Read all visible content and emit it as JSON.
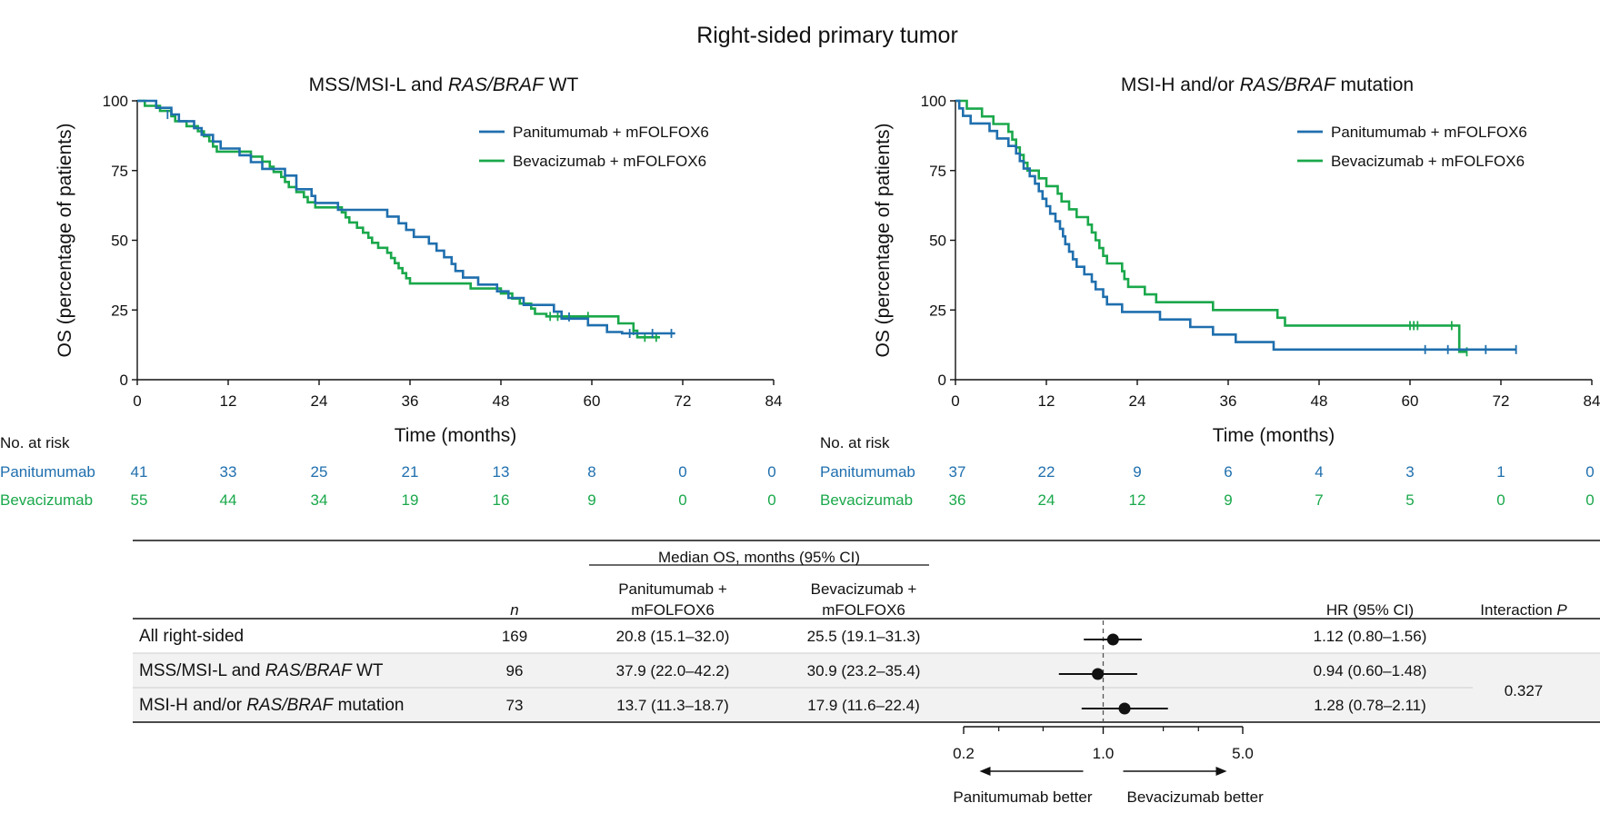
{
  "figure_title": "Right-sided primary tumor",
  "colors": {
    "panitumumab": "#1f6fae",
    "bevacizumab": "#1aa84b",
    "text": "#111111",
    "band": "#f2f2f2"
  },
  "chart_data": [
    {
      "type": "line",
      "title_plain": "MSS/MSI-L and ",
      "title_italic": "RAS/BRAF",
      "title_tail": " WT",
      "xlabel": "Time (months)",
      "ylabel": "OS (percentage of patients)",
      "xlim": [
        0,
        84
      ],
      "ylim": [
        0,
        100
      ],
      "xticks": [
        0,
        12,
        24,
        36,
        48,
        60,
        72,
        84
      ],
      "yticks": [
        0,
        25,
        50,
        75,
        100
      ],
      "legend_position": "top-right",
      "series": [
        {
          "name": "Panitumumab + mFOLFOX6",
          "color_key": "panitumumab",
          "steps": [
            [
              0,
              100
            ],
            [
              2.5,
              97.5
            ],
            [
              4.5,
              95.1
            ],
            [
              5.5,
              92.7
            ],
            [
              7.5,
              90.2
            ],
            [
              8.5,
              87.8
            ],
            [
              10,
              85.4
            ],
            [
              11,
              82.9
            ],
            [
              13.5,
              80.5
            ],
            [
              15,
              78
            ],
            [
              16.5,
              75.6
            ],
            [
              19.5,
              73.2
            ],
            [
              21,
              68.3
            ],
            [
              23,
              65.9
            ],
            [
              23.5,
              63.4
            ],
            [
              26.5,
              60.9
            ],
            [
              33,
              58.5
            ],
            [
              34.5,
              56.1
            ],
            [
              35.5,
              53.7
            ],
            [
              36.5,
              51.2
            ],
            [
              38.5,
              48.8
            ],
            [
              39.5,
              46.3
            ],
            [
              40.5,
              43.9
            ],
            [
              41.5,
              41.5
            ],
            [
              42,
              39
            ],
            [
              43,
              36.6
            ],
            [
              45,
              34.1
            ],
            [
              47.5,
              31.7
            ],
            [
              49,
              29.3
            ],
            [
              51,
              26.8
            ],
            [
              55,
              24.4
            ],
            [
              56,
              21.9
            ],
            [
              59.5,
              19.5
            ],
            [
              62,
              17.1
            ],
            [
              64,
              16.6
            ],
            [
              71,
              16.6
            ]
          ],
          "censors": [
            [
              4,
              95.1
            ],
            [
              57,
              22.5
            ],
            [
              65,
              16.6
            ],
            [
              68,
              16.6
            ],
            [
              70.5,
              16.6
            ]
          ]
        },
        {
          "name": "Bevacizumab + mFOLFOX6",
          "color_key": "bevacizumab",
          "steps": [
            [
              0,
              100
            ],
            [
              1,
              98.2
            ],
            [
              3,
              96.4
            ],
            [
              4.5,
              94.5
            ],
            [
              5,
              92.7
            ],
            [
              6.5,
              90.9
            ],
            [
              8,
              89.1
            ],
            [
              8.8,
              87.3
            ],
            [
              9.5,
              85.5
            ],
            [
              10,
              83.6
            ],
            [
              10.5,
              81.8
            ],
            [
              15,
              80
            ],
            [
              16.5,
              78.2
            ],
            [
              17.5,
              76.4
            ],
            [
              18,
              74.5
            ],
            [
              19,
              72.7
            ],
            [
              19.5,
              70.9
            ],
            [
              20,
              69.1
            ],
            [
              21,
              67.3
            ],
            [
              22,
              65.5
            ],
            [
              22.5,
              63.6
            ],
            [
              23.5,
              61.8
            ],
            [
              27,
              60
            ],
            [
              27.5,
              58.2
            ],
            [
              28,
              56.4
            ],
            [
              29,
              54.5
            ],
            [
              29.8,
              52.7
            ],
            [
              30.5,
              50.9
            ],
            [
              31,
              49.1
            ],
            [
              31.8,
              47.3
            ],
            [
              33,
              45.5
            ],
            [
              33.5,
              43.6
            ],
            [
              34,
              41.8
            ],
            [
              34.5,
              40
            ],
            [
              35,
              38.2
            ],
            [
              35.5,
              36.4
            ],
            [
              36,
              34.5
            ],
            [
              44,
              32.7
            ],
            [
              48,
              30.9
            ],
            [
              49.5,
              29.1
            ],
            [
              50.5,
              27.3
            ],
            [
              52,
              25.5
            ],
            [
              52.5,
              23.6
            ],
            [
              54,
              22.7
            ],
            [
              60.5,
              22.7
            ],
            [
              63.5,
              20.2
            ],
            [
              65.5,
              17.6
            ],
            [
              66,
              15.2
            ],
            [
              69,
              15.2
            ]
          ],
          "censors": [
            [
              54.5,
              22.7
            ],
            [
              55.5,
              22.7
            ],
            [
              59.5,
              22.7
            ],
            [
              65.5,
              17.6
            ],
            [
              67,
              15.2
            ],
            [
              68.5,
              15.2
            ]
          ]
        }
      ],
      "risk_table": {
        "header": "No. at risk",
        "rows": [
          {
            "label": "Panitumumab",
            "color_key": "panitumumab",
            "values": [
              "41",
              "33",
              "25",
              "21",
              "13",
              "8",
              "0",
              "0"
            ]
          },
          {
            "label": "Bevacizumab",
            "color_key": "bevacizumab",
            "values": [
              "55",
              "44",
              "34",
              "19",
              "16",
              "9",
              "0",
              "0"
            ]
          }
        ]
      }
    },
    {
      "type": "line",
      "title_plain": "MSI-H and/or ",
      "title_italic": "RAS/BRAF",
      "title_tail": " mutation",
      "xlabel": "Time (months)",
      "ylabel": "OS (percentage of patients)",
      "xlim": [
        0,
        84
      ],
      "ylim": [
        0,
        100
      ],
      "xticks": [
        0,
        12,
        24,
        36,
        48,
        60,
        72,
        84
      ],
      "yticks": [
        0,
        25,
        50,
        75,
        100
      ],
      "legend_position": "top-right",
      "series": [
        {
          "name": "Panitumumab + mFOLFOX6",
          "color_key": "panitumumab",
          "steps": [
            [
              0,
              100
            ],
            [
              0.5,
              97.3
            ],
            [
              1,
              94.6
            ],
            [
              2,
              91.9
            ],
            [
              4.5,
              89.2
            ],
            [
              5.5,
              86.5
            ],
            [
              7,
              83.8
            ],
            [
              8,
              81.1
            ],
            [
              8.5,
              78.4
            ],
            [
              9,
              75.7
            ],
            [
              9.8,
              73
            ],
            [
              10.5,
              70.3
            ],
            [
              11,
              67.6
            ],
            [
              11.5,
              64.9
            ],
            [
              12,
              62.2
            ],
            [
              12.5,
              59.5
            ],
            [
              13.2,
              56.8
            ],
            [
              13.8,
              54.1
            ],
            [
              14.2,
              51.4
            ],
            [
              14.5,
              48.6
            ],
            [
              15,
              45.9
            ],
            [
              15.5,
              43.2
            ],
            [
              16,
              40.5
            ],
            [
              17,
              37.8
            ],
            [
              18,
              35.1
            ],
            [
              18.5,
              32.4
            ],
            [
              19.5,
              29.7
            ],
            [
              20,
              27
            ],
            [
              22,
              24.3
            ],
            [
              27,
              21.6
            ],
            [
              31,
              18.9
            ],
            [
              34,
              16.2
            ],
            [
              37,
              13.5
            ],
            [
              42,
              10.8
            ],
            [
              74,
              10.8
            ]
          ],
          "censors": [
            [
              62,
              10.8
            ],
            [
              65,
              10.8
            ],
            [
              70,
              10.8
            ],
            [
              74,
              10.8
            ]
          ]
        },
        {
          "name": "Bevacizumab + mFOLFOX6",
          "color_key": "bevacizumab",
          "steps": [
            [
              0,
              100
            ],
            [
              1.5,
              97.2
            ],
            [
              3.5,
              94.4
            ],
            [
              5,
              91.7
            ],
            [
              7,
              88.9
            ],
            [
              7.5,
              86.1
            ],
            [
              8,
              83.3
            ],
            [
              8.5,
              80.6
            ],
            [
              9,
              77.8
            ],
            [
              9.5,
              75
            ],
            [
              11,
              72.2
            ],
            [
              12,
              69.4
            ],
            [
              13.5,
              66.7
            ],
            [
              14,
              63.9
            ],
            [
              15,
              61.1
            ],
            [
              16,
              58.3
            ],
            [
              17.5,
              55.6
            ],
            [
              18,
              52.8
            ],
            [
              18.5,
              50
            ],
            [
              19,
              47.2
            ],
            [
              19.5,
              44.4
            ],
            [
              20,
              41.7
            ],
            [
              22,
              38.9
            ],
            [
              22.3,
              36.1
            ],
            [
              22.8,
              33.3
            ],
            [
              25,
              30.6
            ],
            [
              26.5,
              27.8
            ],
            [
              34,
              25
            ],
            [
              42.5,
              22.2
            ],
            [
              43.5,
              19.4
            ],
            [
              66.5,
              10
            ],
            [
              67.5,
              10
            ]
          ],
          "censors": [
            [
              60,
              19.4
            ],
            [
              60.5,
              19.4
            ],
            [
              61,
              19.4
            ],
            [
              65.5,
              19.4
            ],
            [
              67.5,
              10
            ]
          ]
        }
      ],
      "risk_table": {
        "header": "No. at risk",
        "rows": [
          {
            "label": "Panitumumab",
            "color_key": "panitumumab",
            "values": [
              "37",
              "22",
              "9",
              "6",
              "4",
              "3",
              "1",
              "0"
            ]
          },
          {
            "label": "Bevacizumab",
            "color_key": "bevacizumab",
            "values": [
              "36",
              "24",
              "12",
              "9",
              "7",
              "5",
              "0",
              "0"
            ]
          }
        ]
      }
    },
    {
      "type": "table",
      "group_header": "Median OS, months (95% CI)",
      "col_n": "n",
      "col_pan": [
        "Panitumumab +",
        "mFOLFOX6"
      ],
      "col_bev": [
        "Bevacizumab +",
        "mFOLFOX6"
      ],
      "col_hr": "HR (95% CI)",
      "col_int_plain": "Interaction ",
      "col_int_italic": "P",
      "interaction_p": "0.327",
      "rows": [
        {
          "label_plain": "All right-sided",
          "label_italic": "",
          "label_tail": "",
          "n": "169",
          "pan": "20.8 (15.1–32.0)",
          "bev": "25.5 (19.1–31.3)",
          "hr_text": "1.12 (0.80–1.56)",
          "hr": 1.12,
          "lo": 0.8,
          "hi": 1.56,
          "shaded": false
        },
        {
          "label_plain": "MSS/MSI-L and ",
          "label_italic": "RAS/BRAF",
          "label_tail": " WT",
          "n": "96",
          "pan": "37.9 (22.0–42.2)",
          "bev": "30.9 (23.2–35.4)",
          "hr_text": "0.94 (0.60–1.48)",
          "hr": 0.94,
          "lo": 0.6,
          "hi": 1.48,
          "shaded": true
        },
        {
          "label_plain": "MSI-H and/or ",
          "label_italic": "RAS/BRAF",
          "label_tail": " mutation",
          "n": "73",
          "pan": "13.7 (11.3–18.7)",
          "bev": "17.9 (11.6–22.4)",
          "hr_text": "1.28 (0.78–2.11)",
          "hr": 1.28,
          "lo": 0.78,
          "hi": 2.11,
          "shaded": true
        }
      ],
      "forest_axis": {
        "scale": "log",
        "xlim": [
          0.2,
          5.0
        ],
        "tick_labels": [
          "0.2",
          "1.0",
          "5.0"
        ],
        "tick_values": [
          0.2,
          1.0,
          5.0
        ],
        "minor_ticks": [
          0.3,
          0.5,
          2.0,
          3.0
        ],
        "reference": 1.0,
        "left_arrow_label": "Panitumumab better",
        "right_arrow_label": "Bevacizumab better"
      }
    }
  ]
}
